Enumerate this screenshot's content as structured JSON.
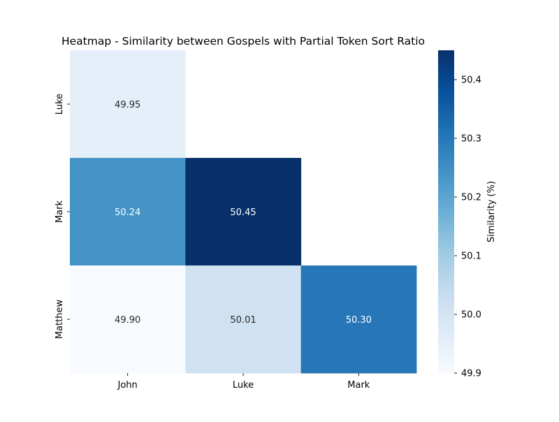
{
  "chart_data": {
    "type": "heatmap",
    "title": "Heatmap - Similarity between Gospels with Partial Token Sort Ratio",
    "x_categories": [
      "John",
      "Luke",
      "Mark"
    ],
    "y_categories": [
      "Luke",
      "Mark",
      "Matthew"
    ],
    "cells": [
      {
        "row": "Luke",
        "col": "John",
        "value": 49.95,
        "label": "49.95"
      },
      {
        "row": "Mark",
        "col": "John",
        "value": 50.24,
        "label": "50.24"
      },
      {
        "row": "Mark",
        "col": "Luke",
        "value": 50.45,
        "label": "50.45"
      },
      {
        "row": "Matthew",
        "col": "John",
        "value": 49.9,
        "label": "49.90"
      },
      {
        "row": "Matthew",
        "col": "Luke",
        "value": 50.01,
        "label": "50.01"
      },
      {
        "row": "Matthew",
        "col": "Mark",
        "value": 50.3,
        "label": "50.30"
      }
    ],
    "colorbar": {
      "label": "Similarity (%)",
      "range": [
        49.9,
        50.45
      ],
      "ticks": [
        49.9,
        50.0,
        50.1,
        50.2,
        50.3,
        50.4
      ],
      "tick_labels": [
        "49.9",
        "50.0",
        "50.1",
        "50.2",
        "50.3",
        "50.4"
      ],
      "colormap": "Blues"
    }
  }
}
